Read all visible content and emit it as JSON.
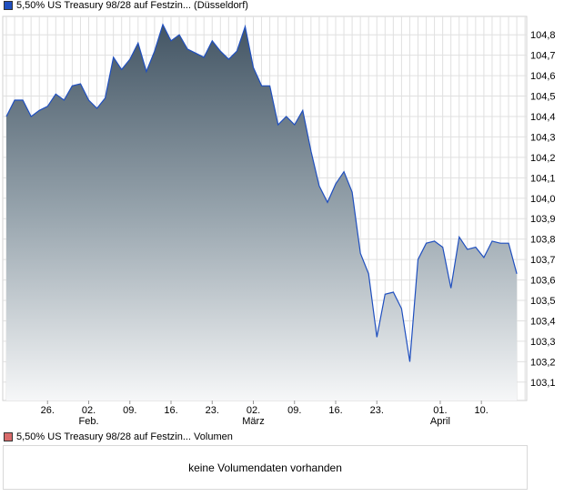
{
  "chart_data": {
    "type": "area",
    "title": "5,50% US Treasury 98/28 auf Festzin... (Düsseldorf)",
    "legend_color": "#1f4fbf",
    "values": [
      104.4,
      104.48,
      104.48,
      104.4,
      104.43,
      104.45,
      104.51,
      104.48,
      104.55,
      104.56,
      104.48,
      104.44,
      104.49,
      104.69,
      104.63,
      104.68,
      104.76,
      104.62,
      104.72,
      104.85,
      104.77,
      104.8,
      104.73,
      104.71,
      104.69,
      104.77,
      104.72,
      104.68,
      104.72,
      104.84,
      104.64,
      104.55,
      104.55,
      104.36,
      104.4,
      104.36,
      104.43,
      104.23,
      104.06,
      103.98,
      104.07,
      104.13,
      104.03,
      103.73,
      103.63,
      103.32,
      103.53,
      103.54,
      103.46,
      103.2,
      103.7,
      103.78,
      103.79,
      103.76,
      103.56,
      103.81,
      103.75,
      103.76,
      103.71,
      103.79,
      103.78,
      103.78,
      103.63
    ],
    "ylim": [
      103.01,
      104.89
    ],
    "yticks": [
      "103,1",
      "103,2",
      "103,3",
      "103,4",
      "103,5",
      "103,6",
      "103,7",
      "103,8",
      "103,9",
      "104,0",
      "104,1",
      "104,2",
      "104,3",
      "104,4",
      "104,5",
      "104,6",
      "104,7",
      "104,8"
    ],
    "ytick_values": [
      103.1,
      103.2,
      103.3,
      103.4,
      103.5,
      103.6,
      103.7,
      103.8,
      103.9,
      104.0,
      104.1,
      104.2,
      104.3,
      104.4,
      104.5,
      104.6,
      104.7,
      104.8
    ],
    "xticks": [
      {
        "index": 5,
        "label": "26.",
        "month": ""
      },
      {
        "index": 10,
        "label": "02.",
        "month": "Feb."
      },
      {
        "index": 15,
        "label": "09.",
        "month": ""
      },
      {
        "index": 20,
        "label": "16.",
        "month": ""
      },
      {
        "index": 25,
        "label": "23.",
        "month": ""
      },
      {
        "index": 30,
        "label": "02.",
        "month": "März"
      },
      {
        "index": 35,
        "label": "09.",
        "month": ""
      },
      {
        "index": 40,
        "label": "16.",
        "month": ""
      },
      {
        "index": 45,
        "label": "23.",
        "month": ""
      },
      {
        "index": 52.7,
        "label": "01.",
        "month": "April"
      },
      {
        "index": 57.7,
        "label": "10.",
        "month": ""
      }
    ],
    "grid": true
  },
  "volume": {
    "title": "5,50% US Treasury 98/28 auf Festzin... Volumen",
    "color": "#d96b6b",
    "message": "keine Volumendaten vorhanden"
  }
}
